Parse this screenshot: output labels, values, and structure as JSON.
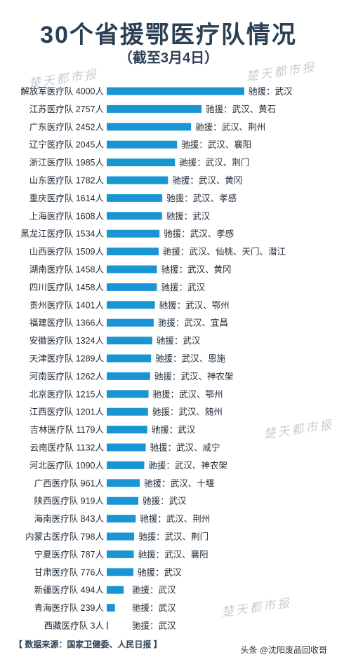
{
  "header": {
    "title": "30个省援鄂医疗队情况",
    "subtitle": "（截至3月4日）"
  },
  "watermark": "楚天都市报",
  "footer": {
    "source": "【 数据来源：国家卫健委、人民日报 】",
    "credit": "头条 @沈阳废品回收哥"
  },
  "colors": {
    "bar": "#1a95d3",
    "text": "#1e2a36",
    "title": "#2b3f55"
  },
  "chart_data": {
    "type": "bar",
    "orientation": "horizontal",
    "title": "30个省援鄂医疗队情况",
    "subtitle": "（截至3月4日）",
    "categories": [
      "解放军医疗队 4000人",
      "江苏医疗队 2757人",
      "广东医疗队 2452人",
      "辽宁医疗队 2045人",
      "浙江医疗队 1985人",
      "山东医疗队 1782人",
      "重庆医疗队 1614人",
      "上海医疗队 1608人",
      "黑龙江医疗队 1534人",
      "山西医疗队 1509人",
      "湖南医疗队 1458人",
      "四川医疗队 1458人",
      "贵州医疗队 1401人",
      "福建医疗队 1366人",
      "安徽医疗队 1324人",
      "天津医疗队 1289人",
      "河南医疗队 1262人",
      "北京医疗队 1215人",
      "江西医疗队 1201人",
      "吉林医疗队 1179人",
      "云南医疗队 1132人",
      "河北医疗队 1090人",
      "广西医疗队 961人",
      "陕西医疗队 919人",
      "海南医疗队 843人",
      "内蒙古医疗队 798人",
      "宁夏医疗队 787人",
      "甘肃医疗队 776人",
      "新疆医疗队 494人",
      "青海医疗队 239人",
      "西藏医疗队 3人"
    ],
    "values": [
      4000,
      2757,
      2452,
      2045,
      1985,
      1782,
      1614,
      1608,
      1534,
      1509,
      1458,
      1458,
      1401,
      1366,
      1324,
      1289,
      1262,
      1215,
      1201,
      1179,
      1132,
      1090,
      961,
      919,
      843,
      798,
      787,
      776,
      494,
      239,
      3
    ],
    "annotations": [
      "驰援：武汉",
      "驰援：武汉、黄石",
      "驰援：武汉、荆州",
      "驰援：武汉、襄阳",
      "驰援：武汉、荆门",
      "驰援：武汉、黄冈",
      "驰援：武汉、孝感",
      "驰援：武汉",
      "驰援：武汉、孝感",
      "驰援：武汉、仙桃、天门、潜江",
      "驰援：武汉、黄冈",
      "驰援：武汉",
      "驰援：武汉、鄂州",
      "驰援：武汉、宜昌",
      "驰援：武汉",
      "驰援：武汉、恩施",
      "驰援：武汉、神农架",
      "驰援：武汉、鄂州",
      "驰援：武汉、随州",
      "驰援：武汉",
      "驰援：武汉、咸宁",
      "驰援：武汉、神农架",
      "驰援：武汉、十堰",
      "驰援：武汉",
      "驰援：武汉、荆州",
      "驰援：武汉、荆门",
      "驰援：武汉、襄阳",
      "驰援：武汉",
      "驰援：武汉",
      "驰援：武汉",
      "驰援：武汉"
    ],
    "xlim": [
      0,
      4000
    ],
    "grid": false,
    "legend": "none"
  }
}
